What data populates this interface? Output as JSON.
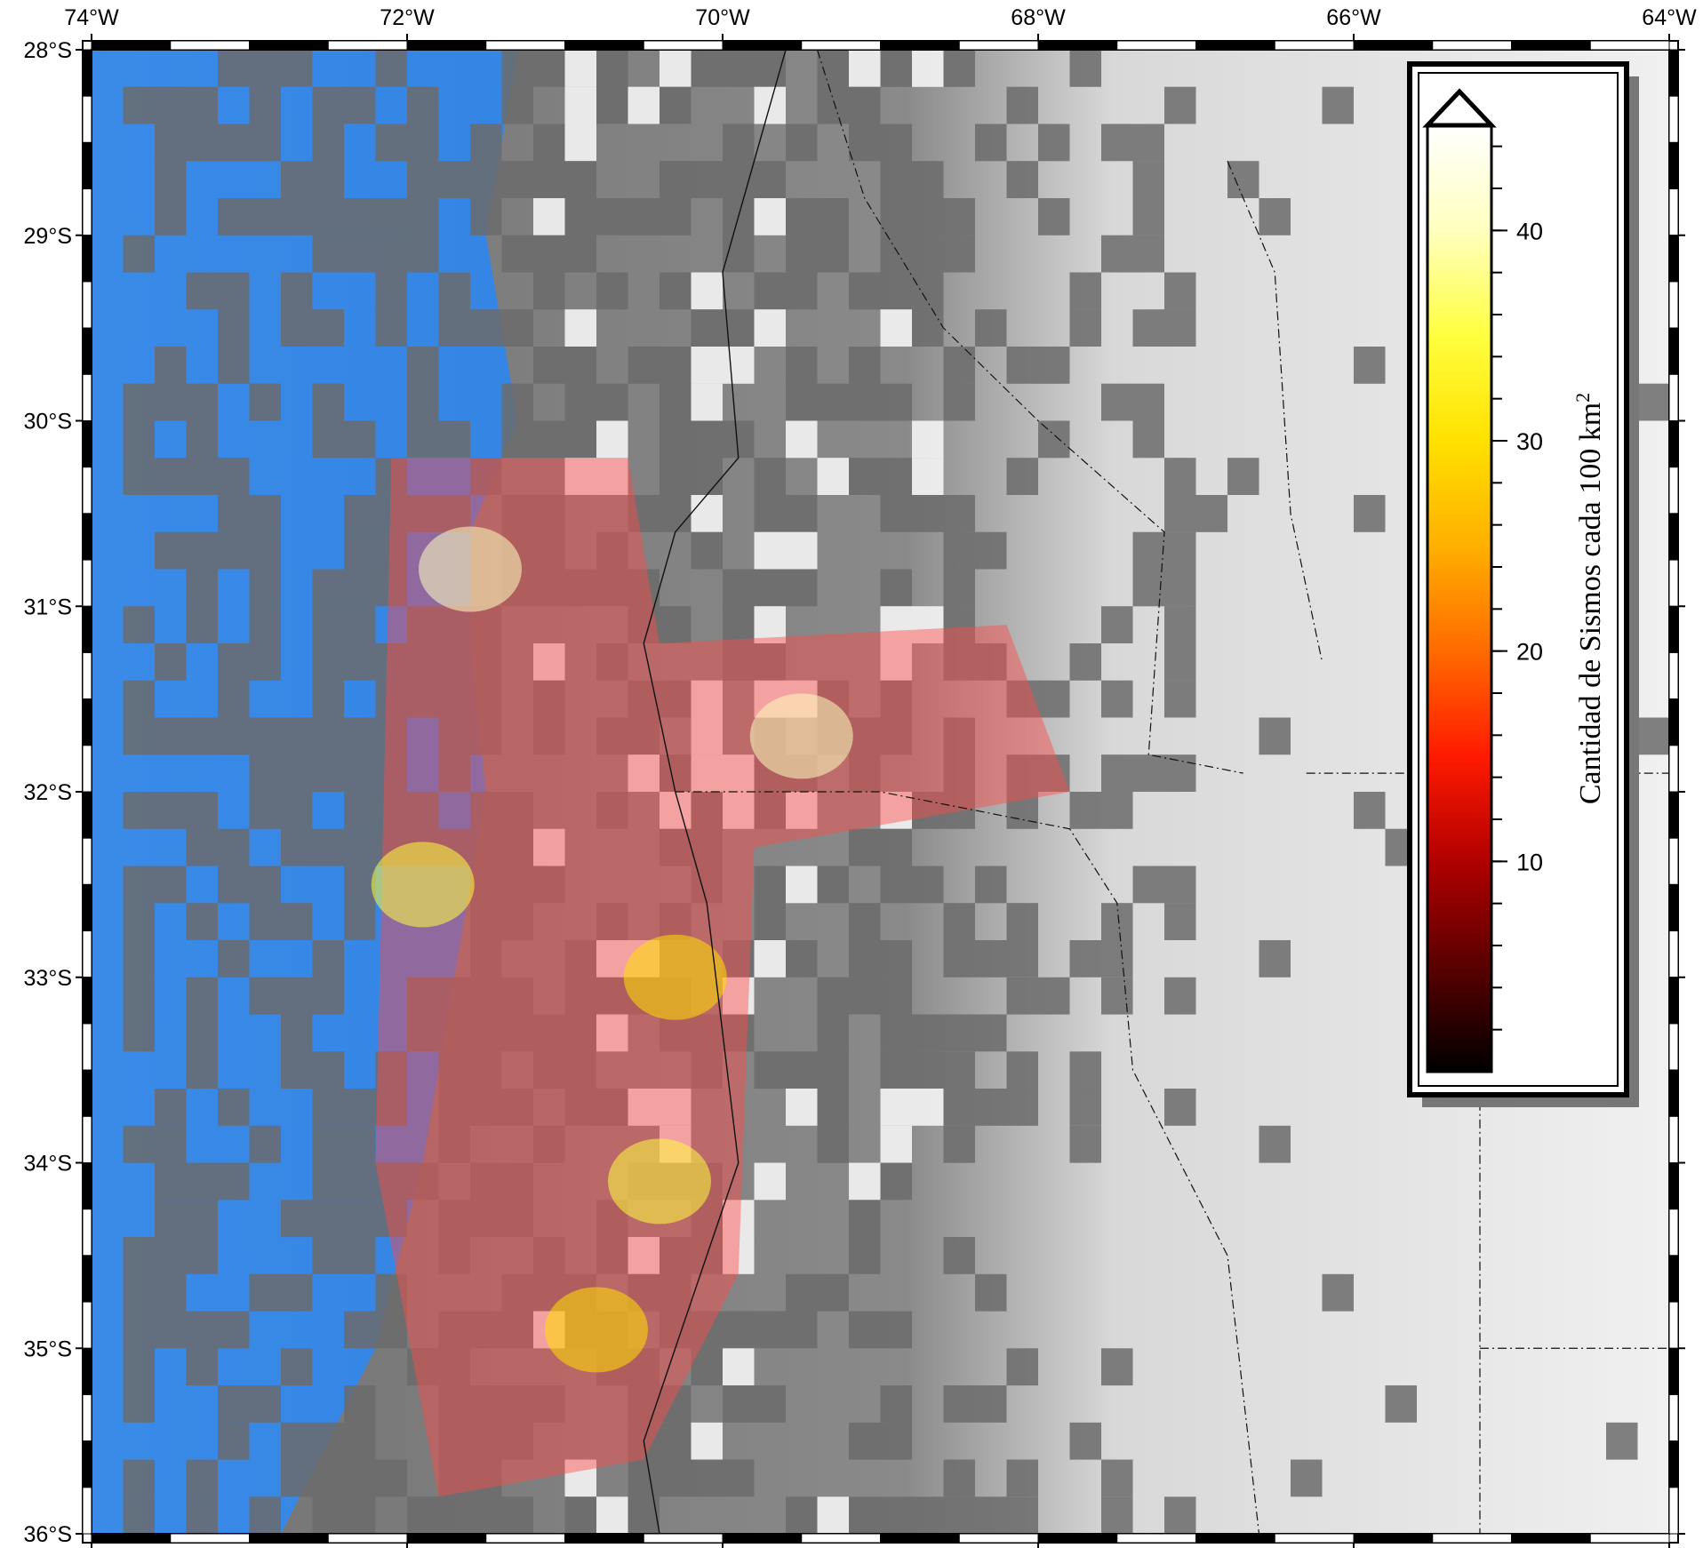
{
  "map": {
    "projection": "linear",
    "extent": {
      "lon_min": -74,
      "lon_max": -64,
      "lat_min": -36,
      "lat_max": -28
    },
    "lon_ticks": [
      {
        "value": -74,
        "label": "74°W"
      },
      {
        "value": -72,
        "label": "72°W"
      },
      {
        "value": -70,
        "label": "70°W"
      },
      {
        "value": -68,
        "label": "68°W"
      },
      {
        "value": -66,
        "label": "66°W"
      },
      {
        "value": -64,
        "label": "64°W"
      }
    ],
    "lat_ticks": [
      {
        "value": -28,
        "label": "28°S"
      },
      {
        "value": -29,
        "label": "29°S"
      },
      {
        "value": -30,
        "label": "30°S"
      },
      {
        "value": -31,
        "label": "31°S"
      },
      {
        "value": -32,
        "label": "32°S"
      },
      {
        "value": -33,
        "label": "33°S"
      },
      {
        "value": -34,
        "label": "34°S"
      },
      {
        "value": -35,
        "label": "35°S"
      },
      {
        "value": -36,
        "label": "36°S"
      }
    ],
    "frame_style": "fancy",
    "colors": {
      "ocean": "#2f7fe0",
      "ocean_deep": "#1c5fbf",
      "land": "#e9e9e9",
      "cell_gray": "#6b6b6b"
    },
    "seismicity_zones": [
      {
        "name": "",
        "lon": -71.6,
        "lat": -30.8,
        "value": 38
      },
      {
        "name": "",
        "lon": -69.5,
        "lat": -31.7,
        "value": 40
      },
      {
        "name": "",
        "lon": -71.9,
        "lat": -32.5,
        "value": 34
      },
      {
        "name": "",
        "lon": -70.3,
        "lat": -33.0,
        "value": 32
      },
      {
        "name": "",
        "lon": -70.4,
        "lat": -34.1,
        "value": 36
      },
      {
        "name": "",
        "lon": -70.8,
        "lat": -34.9,
        "value": 28
      }
    ]
  },
  "colorbar": {
    "title": "Cantidad de Sismos cada 100 km",
    "title_superscript": "2",
    "range": [
      0,
      45
    ],
    "labels": [
      {
        "value": 10,
        "label": "10"
      },
      {
        "value": 20,
        "label": "20"
      },
      {
        "value": 30,
        "label": "30"
      },
      {
        "value": 40,
        "label": "40"
      }
    ],
    "minor_ticks": [
      2,
      4,
      6,
      8,
      10,
      12,
      14,
      16,
      18,
      20,
      22,
      24,
      26,
      28,
      30,
      32,
      34,
      36,
      38,
      40,
      42,
      44
    ],
    "cpt": "hot",
    "foreground_triangle": true,
    "colors": [
      "#000000",
      "#5a0000",
      "#b00000",
      "#ff1a00",
      "#ff6a00",
      "#ffb000",
      "#ffe100",
      "#ffff40",
      "#ffffc0",
      "#ffffff"
    ]
  }
}
